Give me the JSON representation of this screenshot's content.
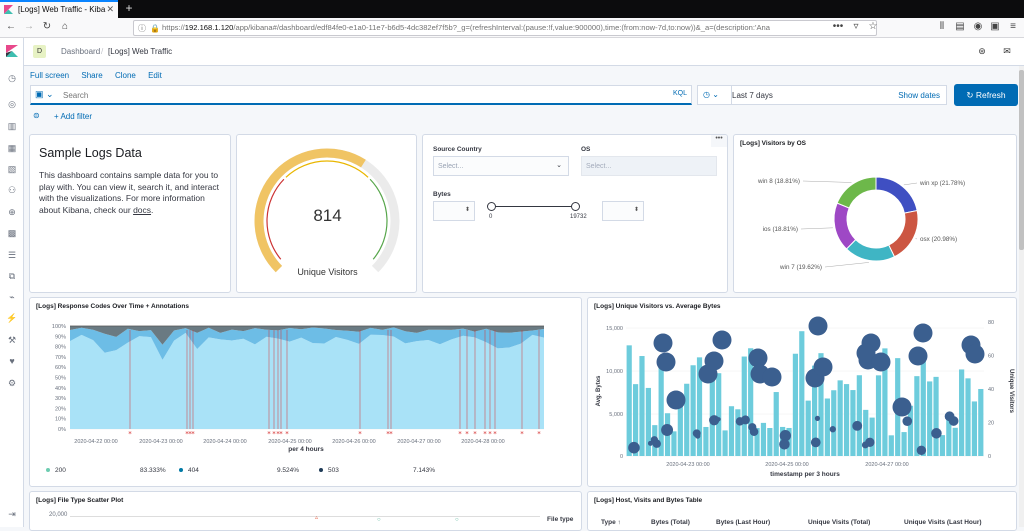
{
  "browser": {
    "tab_title": "[Logs] Web Traffic - Kiba",
    "url_prefix": "https://",
    "url_host": "192.168.1.120",
    "url_rest": "/app/kibana#/dashboard/edf84fe0-e1a0-11e7-b6d5-4dc382ef7f5b?_g=(refreshInterval:(pause:!f,value:900000),time:(from:now-7d,to:now))&_a=(description:'Ana"
  },
  "header": {
    "space_initial": "D",
    "breadcrumb_root": "Dashboard",
    "breadcrumb_current": "[Logs] Web Traffic"
  },
  "top_menu": [
    "Full screen",
    "Share",
    "Clone",
    "Edit"
  ],
  "query": {
    "placeholder": "Search",
    "kql_label": "KQL"
  },
  "time": {
    "label": "Last 7 days",
    "show_dates": "Show dates",
    "refresh_label": "Refresh"
  },
  "filter": {
    "add_label": "+ Add filter"
  },
  "markdown": {
    "heading": "Sample Logs Data",
    "body": "This dashboard contains sample data for you to play with. You can view it, search it, and interact with the visualizations. For more information about Kibana, check our",
    "link": "docs",
    "end": "."
  },
  "gauge": {
    "value": "814",
    "label": "Unique Visitors",
    "fraction": 0.62
  },
  "controls": {
    "source_country_label": "Source Country",
    "source_country_placeholder": "Select...",
    "os_label": "OS",
    "os_placeholder": "Select...",
    "bytes_label": "Bytes",
    "bytes_min": "0",
    "bytes_max": "19732"
  },
  "visitors_by_os": {
    "title": "[Logs] Visitors by OS",
    "slices": [
      {
        "name": "win xp",
        "pct": "(21.78%)",
        "value": 21.78,
        "color": "#3f4fc2"
      },
      {
        "name": "osx",
        "pct": "(20.98%)",
        "value": 20.98,
        "color": "#cc5642"
      },
      {
        "name": "win 7",
        "pct": "(19.62%)",
        "value": 19.62,
        "color": "#3fb5c4"
      },
      {
        "name": "ios",
        "pct": "(18.81%)",
        "value": 18.81,
        "color": "#9e48c5"
      },
      {
        "name": "win 8",
        "pct": "(18.81%)",
        "value": 18.81,
        "color": "#6db84a"
      }
    ]
  },
  "response_codes": {
    "title": "[Logs] Response Codes Over Time + Annotations",
    "y_ticks": [
      "100%",
      "90%",
      "80%",
      "70%",
      "60%",
      "50%",
      "40%",
      "30%",
      "20%",
      "10%",
      "0%"
    ],
    "x_ticks": [
      "2020-04-22 00:00",
      "2020-04-23 00:00",
      "2020-04-24 00:00",
      "2020-04-25 00:00",
      "2020-04-26 00:00",
      "2020-04-27 00:00",
      "2020-04-28 00:00"
    ],
    "xlabel": "per 4 hours",
    "legend": [
      {
        "name": "200",
        "pct": "83.333%",
        "color": "#6dccb1"
      },
      {
        "name": "404",
        "pct": "9.524%",
        "color": "#0079a5"
      },
      {
        "name": "503",
        "pct": "7.143%",
        "color": "#1f3b57"
      }
    ]
  },
  "unique_vs_bytes": {
    "title": "[Logs] Unique Visitors vs. Average Bytes",
    "y_left_ticks": [
      "15,000",
      "10,000",
      "5,000",
      "0"
    ],
    "y_right_ticks": [
      "80",
      "60",
      "40",
      "20",
      "0"
    ],
    "x_ticks": [
      "2020-04-23 00:00",
      "2020-04-25 00:00",
      "2020-04-27 00:00"
    ],
    "ylabel_left": "Avg. Bytes",
    "ylabel_right": "Unique Visitors",
    "xlabel": "timestamp per 3 hours"
  },
  "file_type_scatter": {
    "title": "[Logs] File Type Scatter Plot",
    "y_ticks": [
      "20,000",
      "20,000"
    ],
    "legend_title": "File type"
  },
  "host_table": {
    "title": "[Logs] Host, Visits and Bytes Table",
    "columns": [
      "Type ↑",
      "Bytes (Total)",
      "Bytes (Last Hour)",
      "Unique Visits (Total)",
      "Unique Visits (Last Hour)"
    ]
  },
  "chart_data": [
    {
      "type": "pie",
      "title": "[Logs] Visitors by OS",
      "categories": [
        "win xp",
        "osx",
        "win 7",
        "ios",
        "win 8"
      ],
      "values": [
        21.78,
        20.98,
        19.62,
        18.81,
        18.81
      ]
    },
    {
      "type": "area",
      "title": "[Logs] Response Codes Over Time + Annotations",
      "xlabel": "per 4 hours",
      "ylim": [
        0,
        100
      ],
      "series": [
        {
          "name": "200",
          "share": "83.333%"
        },
        {
          "name": "404",
          "share": "9.524%"
        },
        {
          "name": "503",
          "share": "7.143%"
        }
      ]
    },
    {
      "type": "bar",
      "title": "[Logs] Unique Visitors vs. Average Bytes",
      "xlabel": "timestamp per 3 hours",
      "ylabel": "Avg. Bytes",
      "ylim": [
        0,
        16000
      ],
      "y2label": "Unique Visitors",
      "y2lim": [
        0,
        80
      ]
    }
  ]
}
